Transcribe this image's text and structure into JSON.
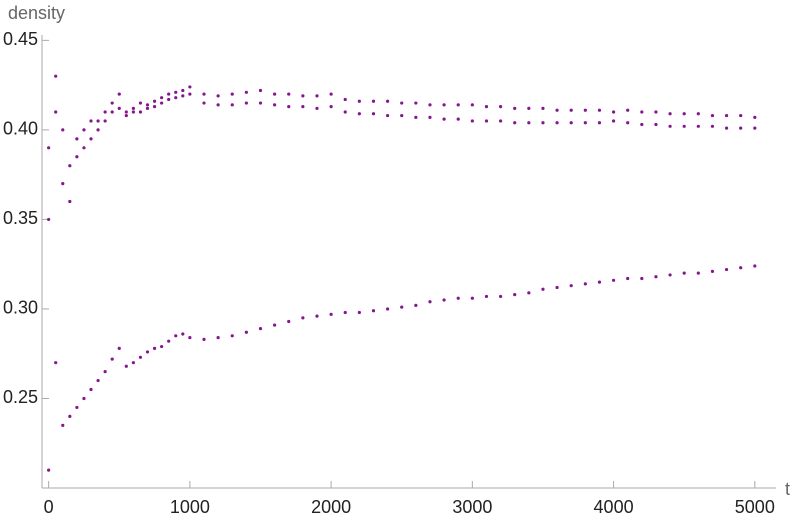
{
  "chart_data": {
    "type": "scatter",
    "y_label": "density",
    "x_label": "t",
    "x": [
      0,
      50,
      100,
      150,
      200,
      250,
      300,
      350,
      400,
      450,
      500,
      550,
      600,
      650,
      700,
      750,
      800,
      850,
      900,
      950,
      1000,
      1100,
      1200,
      1300,
      1400,
      1500,
      1600,
      1700,
      1800,
      1900,
      2000,
      2100,
      2200,
      2300,
      2400,
      2500,
      2600,
      2700,
      2800,
      2900,
      3000,
      3100,
      3200,
      3300,
      3400,
      3500,
      3600,
      3700,
      3800,
      3900,
      4000,
      4100,
      4200,
      4300,
      4400,
      4500,
      4600,
      4700,
      4800,
      4900,
      5000
    ],
    "series": [
      {
        "color": "#84168e",
        "values": [
          0.39,
          0.41,
          0.37,
          0.38,
          0.395,
          0.4,
          0.405,
          0.4,
          0.41,
          0.415,
          0.42,
          0.41,
          0.412,
          0.415,
          0.414,
          0.416,
          0.418,
          0.42,
          0.421,
          0.422,
          0.424,
          0.42,
          0.419,
          0.42,
          0.421,
          0.422,
          0.42,
          0.42,
          0.419,
          0.419,
          0.42,
          0.417,
          0.416,
          0.416,
          0.416,
          0.415,
          0.415,
          0.414,
          0.414,
          0.414,
          0.414,
          0.413,
          0.413,
          0.412,
          0.412,
          0.412,
          0.411,
          0.411,
          0.411,
          0.411,
          0.41,
          0.411,
          0.41,
          0.41,
          0.409,
          0.409,
          0.409,
          0.408,
          0.408,
          0.408,
          0.407
        ]
      },
      {
        "color": "#84168e",
        "values": [
          0.35,
          0.43,
          0.4,
          0.36,
          0.385,
          0.39,
          0.395,
          0.405,
          0.405,
          0.41,
          0.412,
          0.408,
          0.41,
          0.41,
          0.412,
          0.413,
          0.415,
          0.417,
          0.418,
          0.419,
          0.42,
          0.415,
          0.414,
          0.414,
          0.415,
          0.415,
          0.414,
          0.413,
          0.413,
          0.412,
          0.413,
          0.41,
          0.409,
          0.409,
          0.408,
          0.408,
          0.407,
          0.407,
          0.406,
          0.406,
          0.405,
          0.405,
          0.405,
          0.404,
          0.404,
          0.404,
          0.404,
          0.404,
          0.404,
          0.404,
          0.405,
          0.404,
          0.403,
          0.403,
          0.402,
          0.402,
          0.402,
          0.402,
          0.401,
          0.401,
          0.401
        ]
      },
      {
        "color": "#84168e",
        "values": [
          0.21,
          0.27,
          0.235,
          0.24,
          0.245,
          0.25,
          0.255,
          0.26,
          0.265,
          0.272,
          0.278,
          0.268,
          0.27,
          0.273,
          0.276,
          0.278,
          0.279,
          0.282,
          0.285,
          0.286,
          0.284,
          0.283,
          0.284,
          0.285,
          0.287,
          0.289,
          0.291,
          0.293,
          0.295,
          0.296,
          0.297,
          0.298,
          0.298,
          0.299,
          0.3,
          0.301,
          0.302,
          0.304,
          0.305,
          0.306,
          0.306,
          0.307,
          0.307,
          0.308,
          0.309,
          0.311,
          0.312,
          0.313,
          0.314,
          0.315,
          0.316,
          0.317,
          0.317,
          0.318,
          0.319,
          0.32,
          0.32,
          0.321,
          0.322,
          0.323,
          0.324
        ]
      }
    ],
    "xlim": [
      -47,
      5150
    ],
    "ylim": [
      0.2,
      0.453
    ],
    "xticks": [
      0,
      1000,
      2000,
      3000,
      4000,
      5000
    ],
    "yticks": [
      0.25,
      {
        "value": 0.3,
        "label": "0.30"
      },
      0.35,
      {
        "value": 0.4,
        "label": "0.40"
      },
      0.45
    ]
  }
}
